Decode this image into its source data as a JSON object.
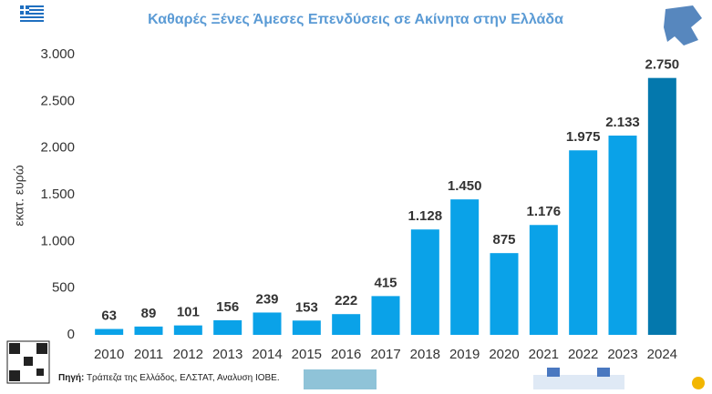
{
  "chart_data": {
    "type": "bar",
    "title": "Καθαρές Ξένες Άμεσες Επενδύσεις σε Ακίνητα στην Ελλάδα",
    "y_axis_label": "εκατ. ευρώ",
    "categories": [
      "2010",
      "2011",
      "2012",
      "2013",
      "2014",
      "2015",
      "2016",
      "2017",
      "2018",
      "2019",
      "2020",
      "2021",
      "2022",
      "2023",
      "2024"
    ],
    "values": [
      63,
      89,
      101,
      156,
      239,
      153,
      222,
      415,
      1128,
      1450,
      875,
      1176,
      1975,
      2133,
      2750
    ],
    "value_labels": [
      "63",
      "89",
      "101",
      "156",
      "239",
      "153",
      "222",
      "415",
      "1.128",
      "1.450",
      "875",
      "1.176",
      "1.975",
      "2.133",
      "2.750"
    ],
    "colors": [
      "#0aa2e8",
      "#0aa2e8",
      "#0aa2e8",
      "#0aa2e8",
      "#0aa2e8",
      "#0aa2e8",
      "#0aa2e8",
      "#0aa2e8",
      "#0aa2e8",
      "#0aa2e8",
      "#0aa2e8",
      "#0aa2e8",
      "#0aa2e8",
      "#0aa2e8",
      "#0478ad"
    ],
    "ylim": [
      0,
      3000
    ],
    "yticks": [
      0,
      500,
      {
        "value": 1000,
        "label": "1.000"
      },
      {
        "value": 1500,
        "label": "1.500"
      },
      {
        "value": 2000,
        "label": "2.000"
      },
      {
        "value": 2500,
        "label": "2.500"
      },
      {
        "value": 3000,
        "label": "3.000"
      }
    ],
    "grid": false,
    "source_label": "Πηγή:",
    "source": "Τράπεζα της Ελλάδος, ΕΛΣΤΑΤ, Αναλυση ΙΟΒΕ."
  }
}
